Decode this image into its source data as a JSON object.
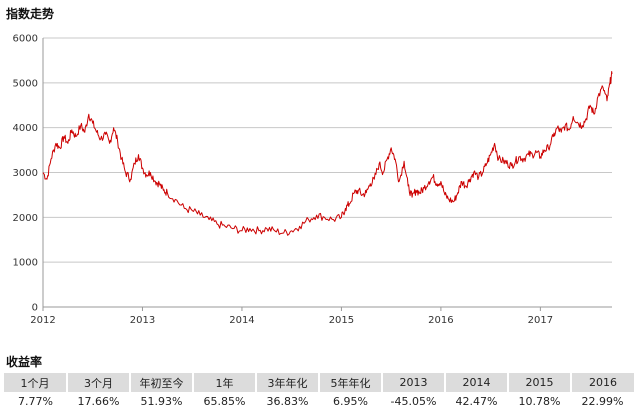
{
  "header": {
    "chart_title": "指数走势",
    "returns_title": "收益率"
  },
  "colors": {
    "line": "#cc0000",
    "grid": "#c8c8c8",
    "header_bg": "#dcdcdc"
  },
  "chart_data": {
    "type": "line",
    "title": "指数走势",
    "xlabel": "",
    "ylabel": "",
    "x_ticks": [
      "2012",
      "2013",
      "2014",
      "2015",
      "2016",
      "2017"
    ],
    "xlim": [
      2012.0,
      2017.72
    ],
    "ylim": [
      0,
      6000
    ],
    "y_ticks": [
      0,
      1000,
      2000,
      3000,
      4000,
      5000,
      6000
    ],
    "grid": "horizontal",
    "series": [
      {
        "x": [
          2012.0,
          2012.04,
          2012.08,
          2012.13,
          2012.17,
          2012.21,
          2012.25,
          2012.29,
          2012.33,
          2012.38,
          2012.42,
          2012.46,
          2012.5,
          2012.54,
          2012.58,
          2012.63,
          2012.67,
          2012.71,
          2012.75,
          2012.79,
          2012.83,
          2012.88,
          2012.92,
          2012.96,
          2013.0,
          2013.04,
          2013.08,
          2013.13,
          2013.17,
          2013.21,
          2013.25,
          2013.33,
          2013.42,
          2013.5,
          2013.58,
          2013.67,
          2013.75,
          2013.83,
          2013.92,
          2014.0,
          2014.08,
          2014.17,
          2014.25,
          2014.33,
          2014.42,
          2014.5,
          2014.58,
          2014.67,
          2014.75,
          2014.83,
          2014.92,
          2015.0,
          2015.04,
          2015.08,
          2015.13,
          2015.17,
          2015.21,
          2015.25,
          2015.29,
          2015.33,
          2015.38,
          2015.42,
          2015.46,
          2015.5,
          2015.54,
          2015.58,
          2015.63,
          2015.67,
          2015.71,
          2015.75,
          2015.79,
          2015.83,
          2015.88,
          2015.92,
          2015.96,
          2016.0,
          2016.04,
          2016.08,
          2016.13,
          2016.17,
          2016.21,
          2016.25,
          2016.29,
          2016.33,
          2016.38,
          2016.42,
          2016.46,
          2016.5,
          2016.54,
          2016.58,
          2016.63,
          2016.67,
          2016.71,
          2016.75,
          2016.79,
          2016.83,
          2016.88,
          2016.92,
          2016.96,
          2017.0,
          2017.04,
          2017.08,
          2017.13,
          2017.17,
          2017.21,
          2017.25,
          2017.29,
          2017.33,
          2017.38,
          2017.42,
          2017.46,
          2017.5,
          2017.54,
          2017.58,
          2017.63,
          2017.67,
          2017.7,
          2017.72
        ],
        "values": [
          3000,
          2850,
          3300,
          3650,
          3550,
          3800,
          3650,
          3950,
          3800,
          4050,
          3900,
          4300,
          4100,
          3900,
          3750,
          3850,
          3650,
          4000,
          3700,
          3300,
          3000,
          2850,
          3200,
          3400,
          3100,
          2950,
          3000,
          2800,
          2750,
          2600,
          2550,
          2400,
          2200,
          2150,
          2050,
          1950,
          1850,
          1800,
          1750,
          1700,
          1750,
          1700,
          1750,
          1700,
          1650,
          1700,
          1800,
          1950,
          2050,
          2000,
          1950,
          2000,
          2200,
          2300,
          2550,
          2600,
          2500,
          2550,
          2750,
          2850,
          3200,
          3000,
          3300,
          3550,
          3300,
          2800,
          3250,
          2700,
          2450,
          2600,
          2550,
          2650,
          2800,
          2900,
          2750,
          2800,
          2500,
          2400,
          2350,
          2550,
          2800,
          2700,
          2850,
          3000,
          2900,
          3000,
          3200,
          3400,
          3650,
          3300,
          3250,
          3200,
          3150,
          3250,
          3350,
          3300,
          3400,
          3400,
          3450,
          3350,
          3500,
          3550,
          3800,
          4000,
          3900,
          4050,
          3950,
          4250,
          4100,
          4050,
          4200,
          4500,
          4300,
          4700,
          4900,
          4600,
          5000,
          5200
        ]
      }
    ]
  },
  "returns_table": {
    "headers": [
      "1个月",
      "3个月",
      "年初至今",
      "1年",
      "3年年化",
      "5年年化",
      "2013",
      "2014",
      "2015",
      "2016"
    ],
    "values": [
      "7.77%",
      "17.66%",
      "51.93%",
      "65.85%",
      "36.83%",
      "6.95%",
      "-45.05%",
      "42.47%",
      "10.78%",
      "22.99%"
    ]
  }
}
